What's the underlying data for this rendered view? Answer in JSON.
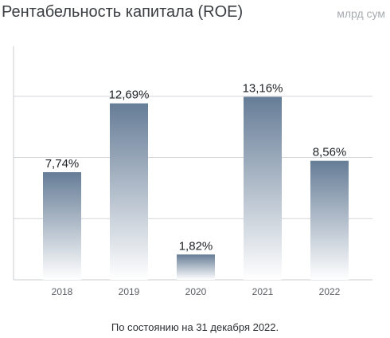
{
  "header": {
    "title": "Рентабельность капитала (ROE)",
    "unit": "млрд сум"
  },
  "footer": {
    "caption": "По состоянию на 31 декабря 2022."
  },
  "colors": {
    "bar_top": "#667d97",
    "bar_bottom": "#ffffff",
    "grid": "#d3d6da",
    "axis": "#c9ccd1"
  },
  "chart_data": {
    "type": "bar",
    "categories": [
      "2018",
      "2019",
      "2020",
      "2021",
      "2022"
    ],
    "values": [
      7.74,
      12.69,
      1.82,
      13.16,
      8.56
    ],
    "value_labels": [
      "7,74%",
      "12,69%",
      "1,82%",
      "13,16%",
      "8,56%"
    ],
    "title": "Рентабельность капитала (ROE)",
    "ylim": [
      0,
      17.6
    ],
    "grid": true,
    "legend": "none"
  }
}
